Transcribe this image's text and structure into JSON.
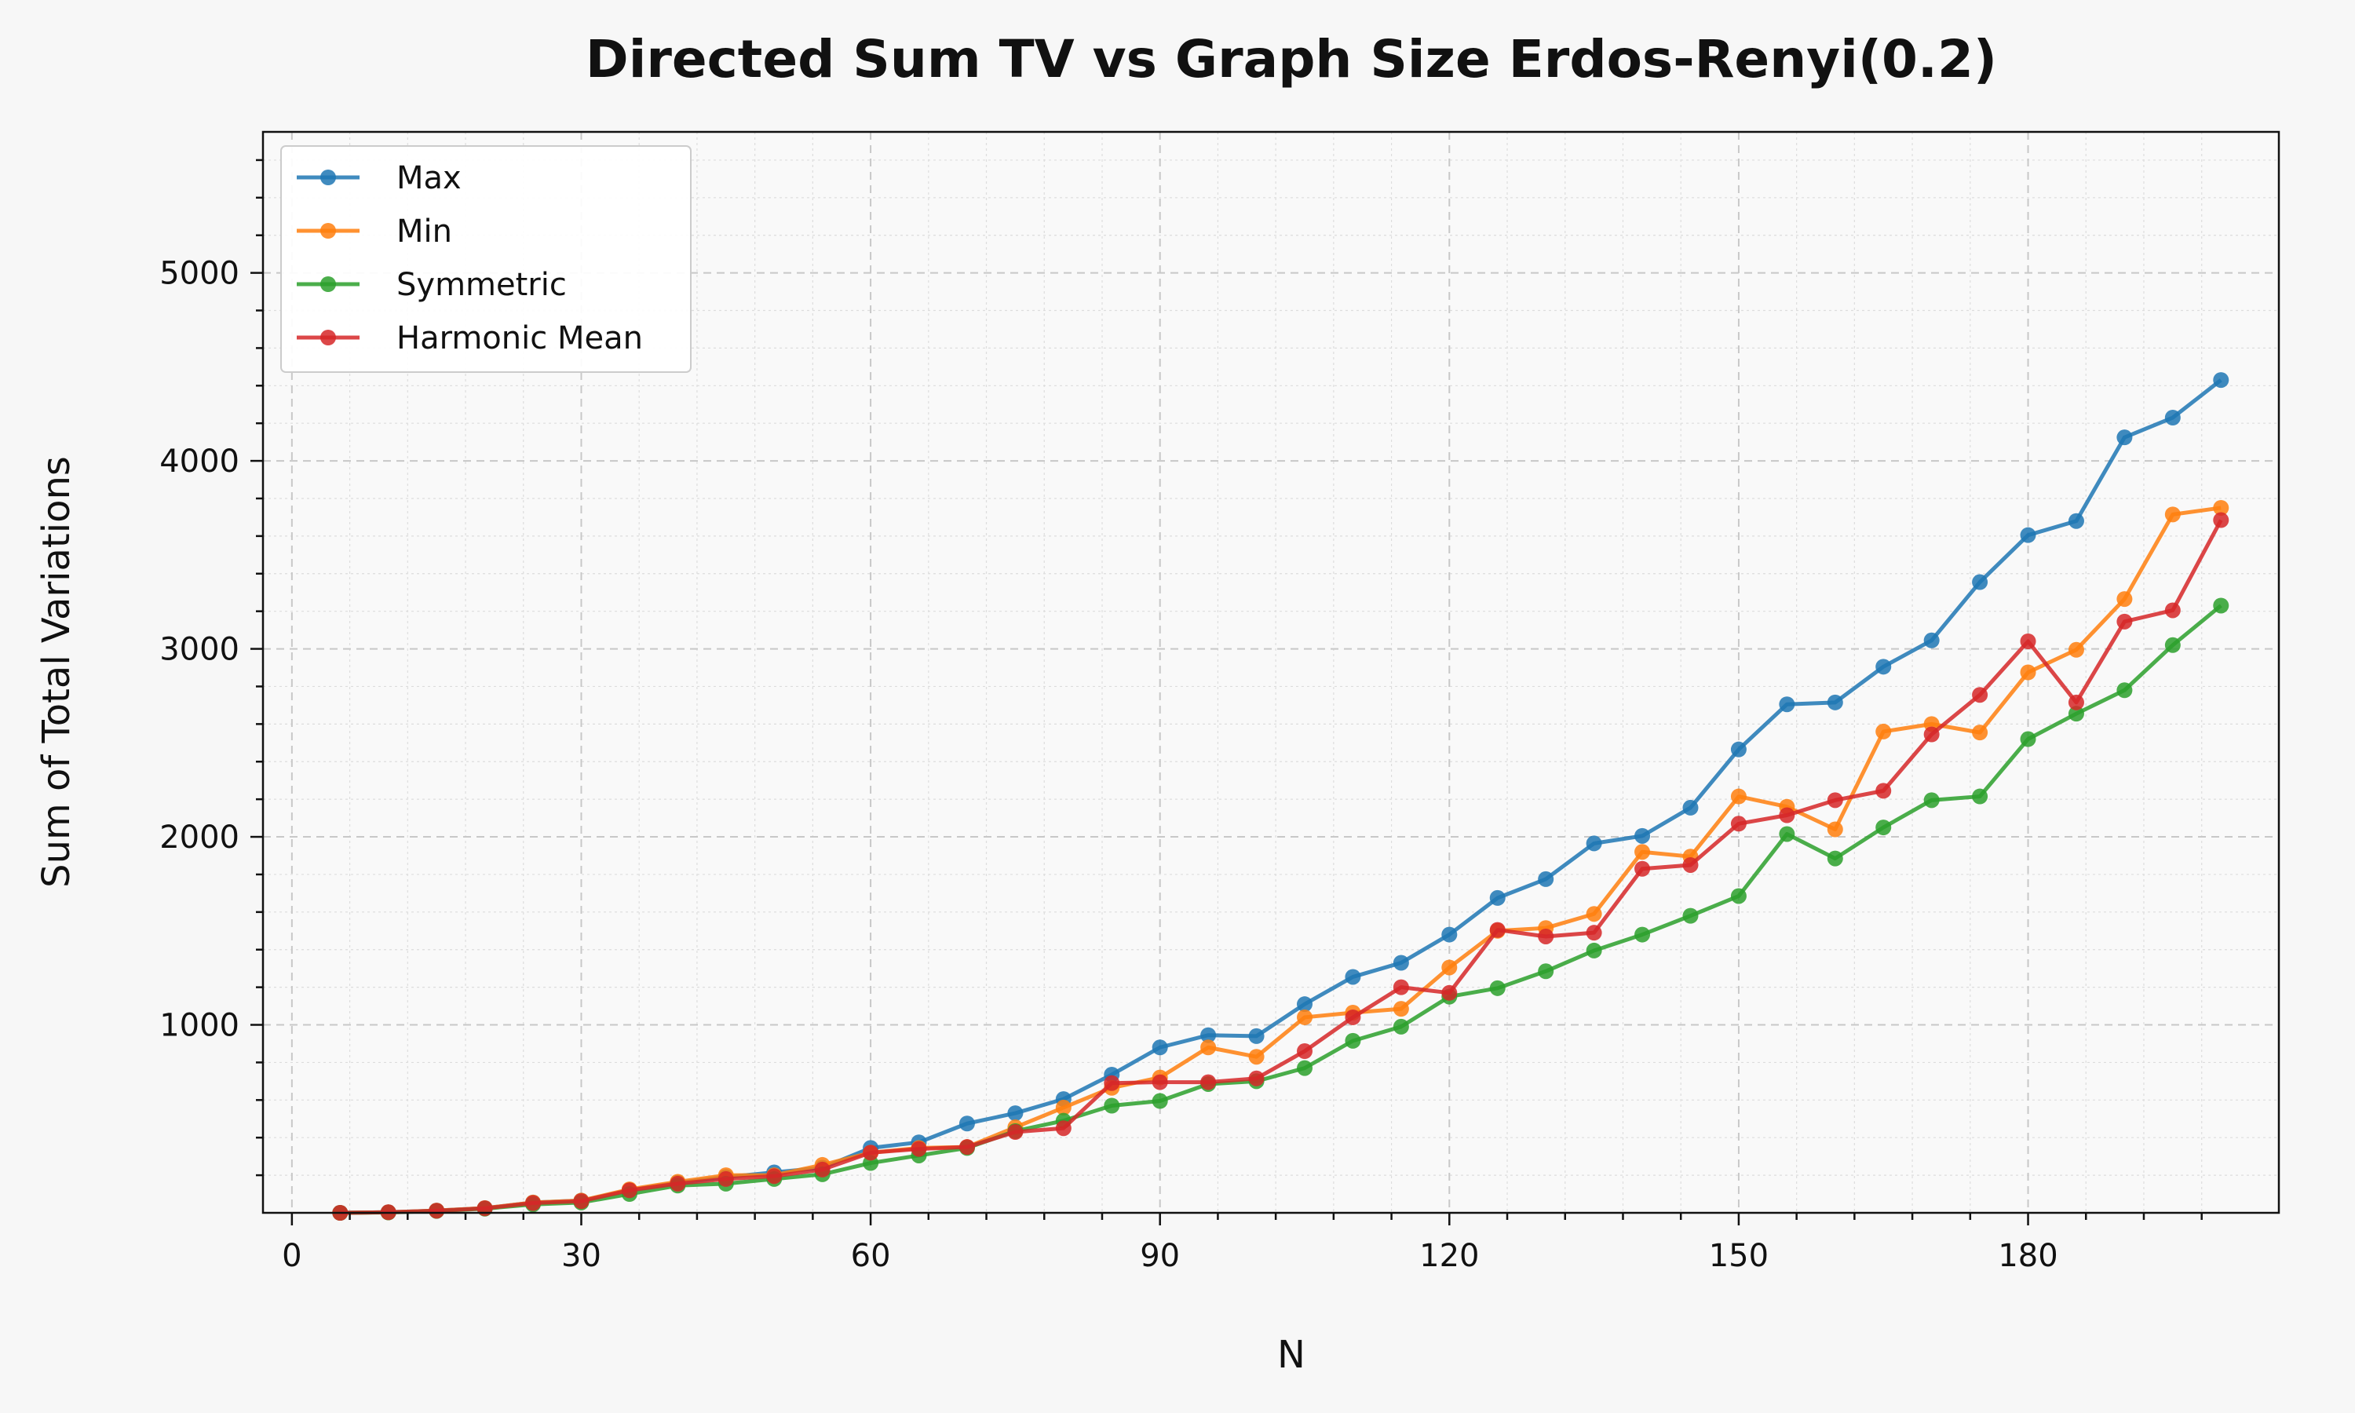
{
  "chart_data": {
    "type": "line",
    "title": "Directed Sum TV vs Graph Size Erdos-Renyi(0.2)",
    "xlabel": "N",
    "ylabel": "Sum of Total Variations",
    "xlim": [
      -3,
      206
    ],
    "ylim": [
      0,
      5750
    ],
    "xticks": [
      0,
      30,
      60,
      90,
      120,
      150,
      180
    ],
    "yticks": [
      1000,
      2000,
      3000,
      4000,
      5000
    ],
    "grid": true,
    "legend_position": "top-left",
    "x": [
      5,
      10,
      15,
      20,
      25,
      30,
      35,
      40,
      45,
      50,
      55,
      60,
      65,
      70,
      75,
      80,
      85,
      90,
      95,
      100,
      105,
      110,
      115,
      120,
      125,
      130,
      135,
      140,
      145,
      150,
      155,
      160,
      165,
      170,
      175,
      180,
      185,
      190,
      195,
      200
    ],
    "series": [
      {
        "name": "Max",
        "color": "#1f77b4",
        "values": [
          0,
          3,
          12,
          25,
          55,
          65,
          120,
          160,
          190,
          215,
          240,
          345,
          375,
          475,
          530,
          605,
          735,
          880,
          945,
          940,
          1110,
          1255,
          1330,
          1480,
          1675,
          1775,
          1965,
          2005,
          2155,
          2465,
          2705,
          2715,
          2905,
          3045,
          3355,
          3605,
          3680,
          4125,
          4230,
          4430
        ]
      },
      {
        "name": "Min",
        "color": "#ff7f0e",
        "values": [
          0,
          3,
          12,
          25,
          55,
          65,
          125,
          165,
          200,
          200,
          255,
          320,
          345,
          350,
          455,
          560,
          665,
          720,
          880,
          830,
          1040,
          1065,
          1085,
          1305,
          1500,
          1515,
          1590,
          1920,
          1895,
          2215,
          2160,
          2040,
          2560,
          2600,
          2555,
          2875,
          2995,
          3265,
          3715,
          3750
        ]
      },
      {
        "name": "Symmetric",
        "color": "#2ca02c",
        "values": [
          0,
          2,
          10,
          22,
          45,
          55,
          100,
          145,
          155,
          180,
          205,
          265,
          305,
          345,
          435,
          490,
          570,
          595,
          685,
          700,
          770,
          915,
          990,
          1150,
          1195,
          1285,
          1395,
          1480,
          1580,
          1685,
          2015,
          1885,
          2050,
          2195,
          2215,
          2520,
          2655,
          2780,
          3020,
          3230
        ]
      },
      {
        "name": "Harmonic Mean",
        "color": "#d62728",
        "values": [
          0,
          3,
          11,
          24,
          52,
          62,
          120,
          155,
          180,
          195,
          230,
          320,
          340,
          350,
          430,
          450,
          690,
          695,
          695,
          715,
          860,
          1040,
          1200,
          1170,
          1505,
          1470,
          1490,
          1830,
          1850,
          2070,
          2115,
          2195,
          2245,
          2545,
          2755,
          3040,
          2715,
          3145,
          3205,
          3685
        ]
      }
    ]
  }
}
